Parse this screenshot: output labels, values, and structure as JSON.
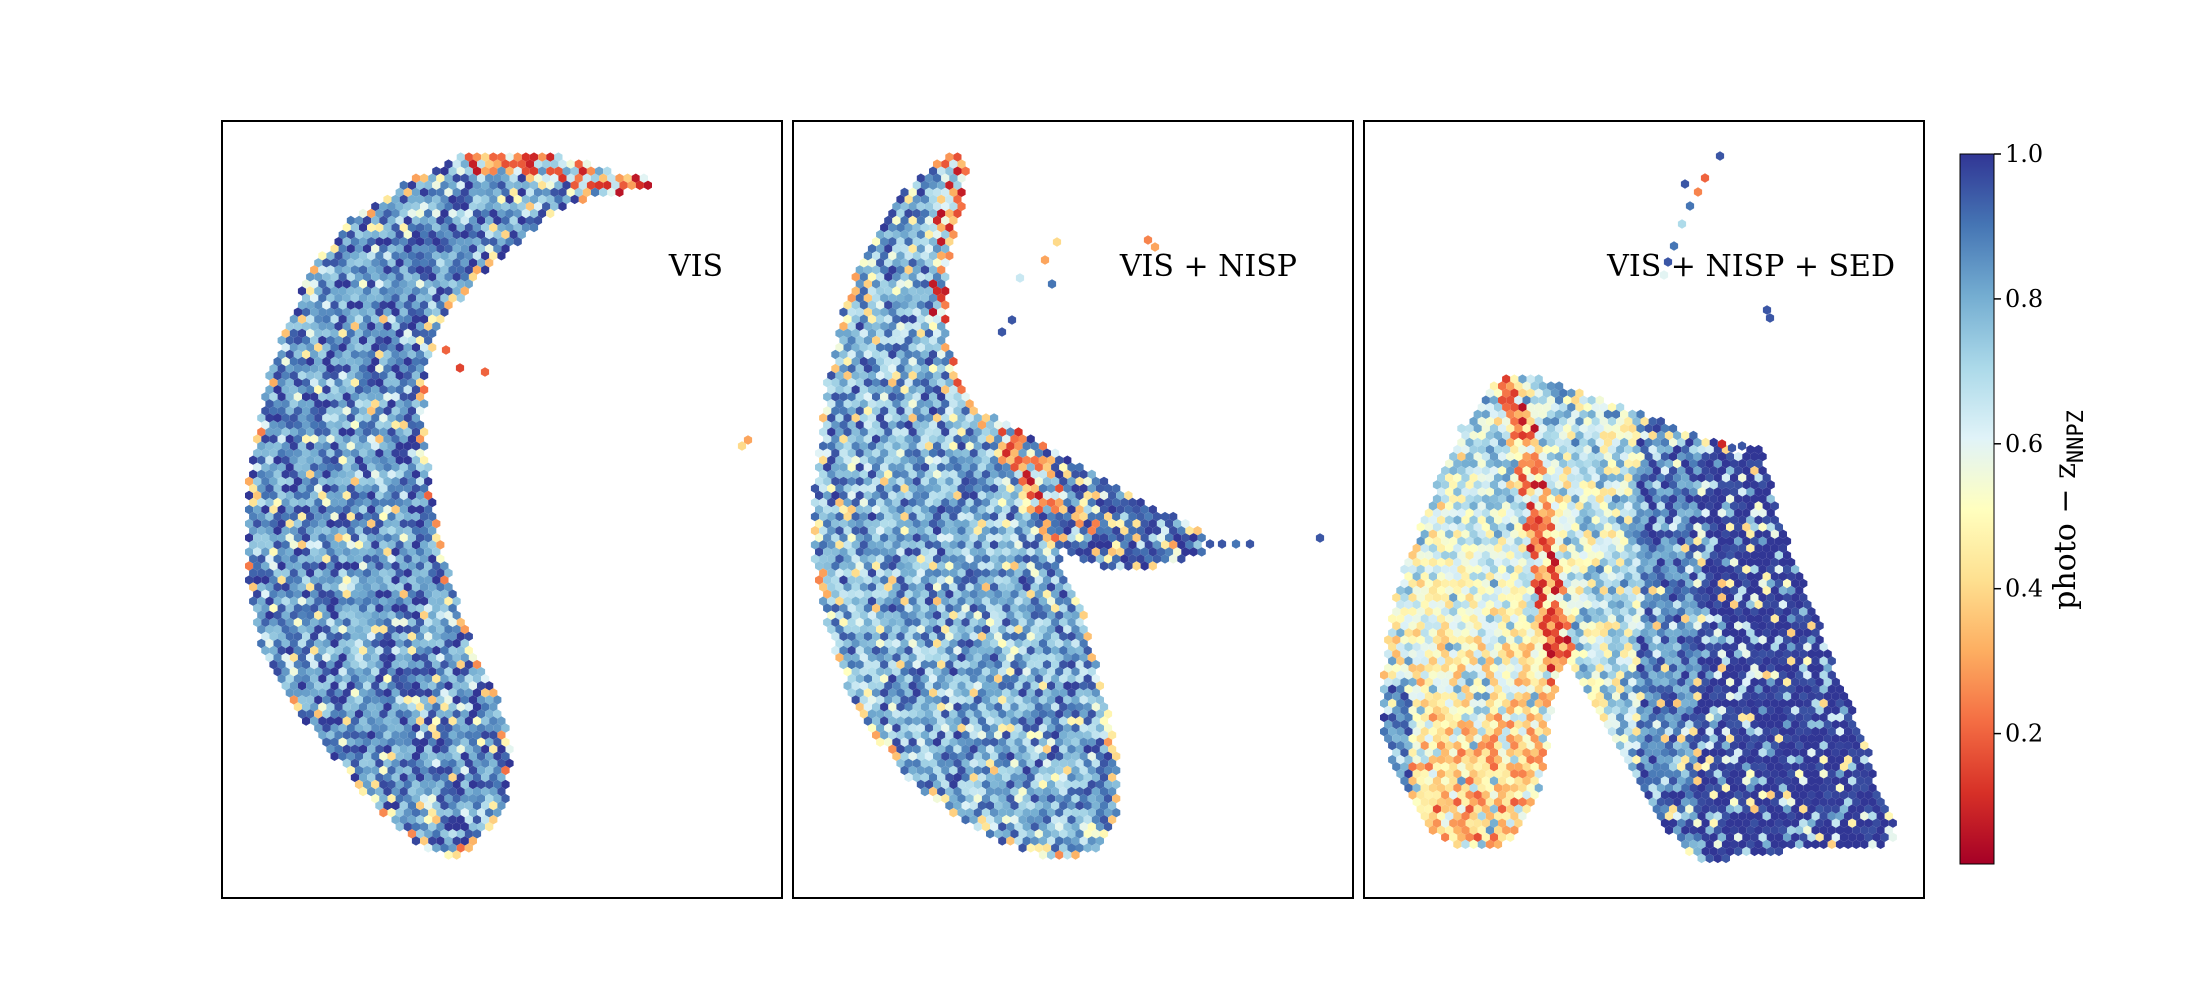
{
  "chart_data": {
    "type": "heatmap",
    "subtype": "hexbin",
    "panels": [
      {
        "label": "VIS",
        "shape": "crescent",
        "regions": [
          {
            "color_value": 0.85,
            "note": "dense blue band"
          },
          {
            "color_value": 0.3,
            "note": "red/orange edge at top-right tip"
          }
        ]
      },
      {
        "label": "VIS + NISP",
        "shape": "forked",
        "regions": [
          {
            "color_value": 0.85,
            "note": "main body"
          },
          {
            "color_value": 0.2,
            "note": "red ridge along inner edge"
          },
          {
            "color_value": 0.95,
            "note": "horizontal branch"
          }
        ]
      },
      {
        "label": "VIS + NISP + SED",
        "shape": "inverted-v",
        "regions": [
          {
            "color_value": 0.4,
            "note": "warm left lobe"
          },
          {
            "color_value": 1.0,
            "note": "dark blue right lobe"
          },
          {
            "color_value": 0.1,
            "note": "red cleft"
          }
        ]
      }
    ],
    "colorbar": {
      "label_main": "photo − z",
      "label_sub": "NNPZ",
      "range": [
        0.02,
        1.0
      ],
      "ticks": [
        "0.2",
        "0.4",
        "0.6",
        "0.8",
        "1.0"
      ],
      "tick_values": [
        0.2,
        0.4,
        0.6,
        0.8,
        1.0
      ],
      "colormap": "RdYlBu",
      "colormap_stops": [
        "#a50026",
        "#d73027",
        "#f46d43",
        "#fdae61",
        "#fee090",
        "#ffffbf",
        "#e0f3f8",
        "#abd9e9",
        "#74add1",
        "#4575b4",
        "#313695"
      ]
    },
    "xlabel": "",
    "ylabel": "",
    "grid": false,
    "axes_ticks_visible": false
  }
}
